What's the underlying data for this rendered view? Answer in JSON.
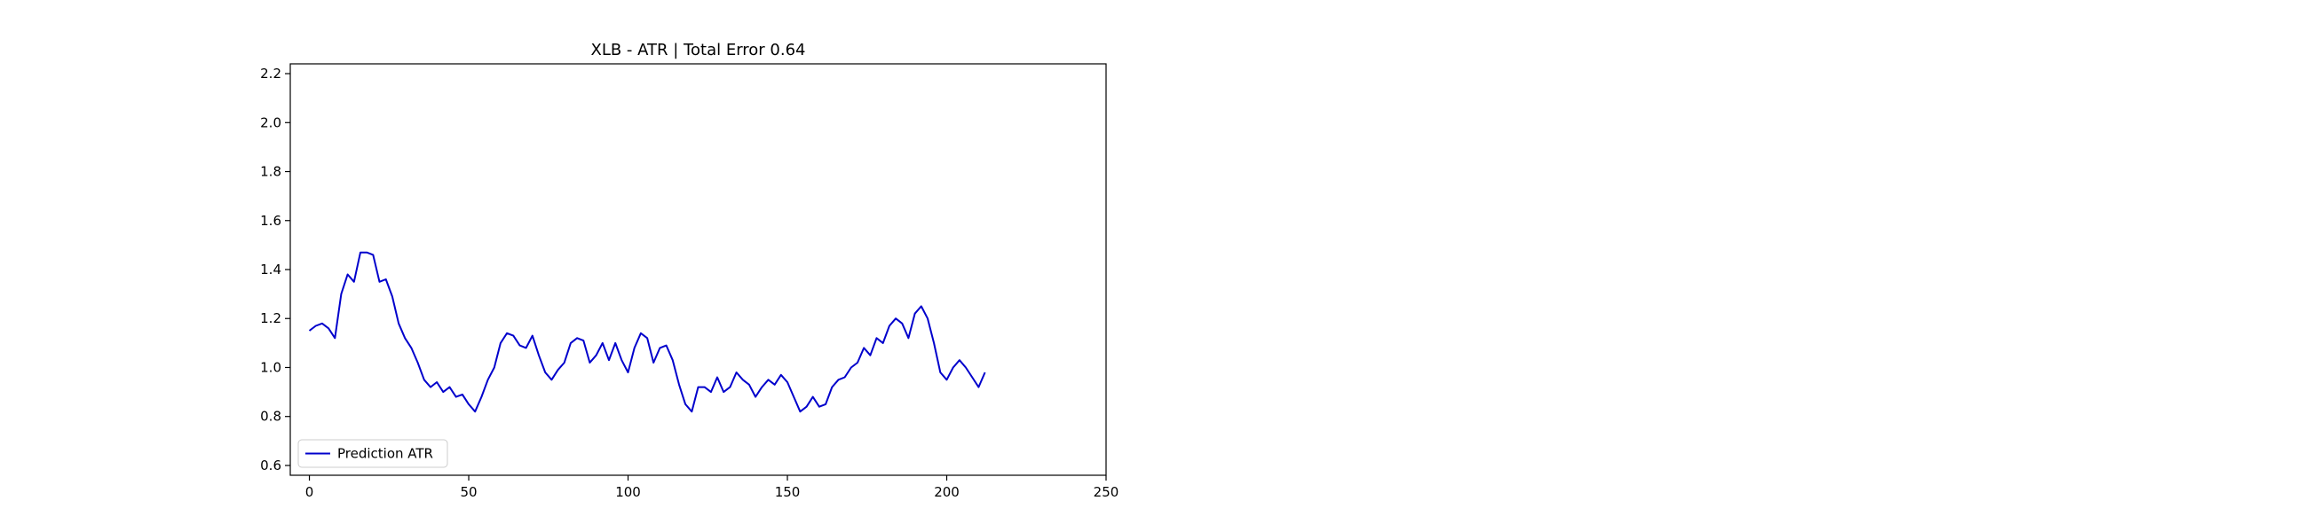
{
  "chart_data": [
    {
      "type": "line",
      "title": "XLB - ATR | Total Error 0.64",
      "xlabel": "",
      "ylabel": "",
      "xlim": [
        -6,
        250
      ],
      "ylim": [
        0.56,
        2.24
      ],
      "xticks": [
        0,
        50,
        100,
        150,
        200,
        250
      ],
      "yticks": [
        0.6,
        0.8,
        1.0,
        1.2,
        1.4,
        1.6,
        1.8,
        2.0,
        2.2
      ],
      "ytick_labels": [
        "0.6",
        "0.8",
        "1.0",
        "1.2",
        "1.4",
        "1.6",
        "1.8",
        "2.0",
        "2.2"
      ],
      "grid": false,
      "legend_position": "lower-left",
      "series": [
        {
          "name": "Prediction ATR",
          "color": "#0000cc",
          "x": [
            0,
            2,
            4,
            6,
            8,
            10,
            12,
            14,
            16,
            18,
            20,
            22,
            24,
            26,
            28,
            30,
            32,
            34,
            36,
            38,
            40,
            42,
            44,
            46,
            48,
            50,
            52,
            54,
            56,
            58,
            60,
            62,
            64,
            66,
            68,
            70,
            72,
            74,
            76,
            78,
            80,
            82,
            84,
            86,
            88,
            90,
            92,
            94,
            96,
            98,
            100,
            102,
            104,
            106,
            108,
            110,
            112,
            114,
            116,
            118,
            120,
            122,
            124,
            126,
            128,
            130,
            132,
            134,
            136,
            138,
            140,
            142,
            144,
            146,
            148,
            150,
            152,
            154,
            156,
            158,
            160,
            162,
            164,
            166,
            168,
            170,
            172,
            174,
            176,
            178,
            180,
            182,
            184,
            186,
            188,
            190,
            192,
            194,
            196,
            198,
            200,
            202,
            204,
            206,
            208,
            210,
            212
          ],
          "y": [
            1.15,
            1.17,
            1.18,
            1.16,
            1.12,
            1.3,
            1.38,
            1.35,
            1.47,
            1.47,
            1.46,
            1.35,
            1.36,
            1.29,
            1.18,
            1.12,
            1.08,
            1.02,
            0.95,
            0.92,
            0.94,
            0.9,
            0.92,
            0.88,
            0.89,
            0.85,
            0.82,
            0.88,
            0.95,
            1.0,
            1.1,
            1.14,
            1.13,
            1.09,
            1.08,
            1.13,
            1.05,
            0.98,
            0.95,
            0.99,
            1.02,
            1.1,
            1.12,
            1.11,
            1.02,
            1.05,
            1.1,
            1.03,
            1.1,
            1.03,
            0.98,
            1.08,
            1.14,
            1.12,
            1.02,
            1.08,
            1.09,
            1.03,
            0.93,
            0.85,
            0.82,
            0.92,
            0.92,
            0.9,
            0.96,
            0.9,
            0.92,
            0.98,
            0.95,
            0.93,
            0.88,
            0.92,
            0.95,
            0.93,
            0.97,
            0.94,
            0.88,
            0.82,
            0.84,
            0.88,
            0.84,
            0.85,
            0.92,
            0.95,
            0.96,
            1.0,
            1.02,
            1.08,
            1.05,
            1.12,
            1.1,
            1.17,
            1.2,
            1.18,
            1.12,
            1.22,
            1.25,
            1.2,
            1.1,
            0.98,
            0.95,
            1.0,
            1.03,
            1.0,
            0.96,
            0.92,
            0.98
          ],
          "y_note": ""
        }
      ]
    }
  ]
}
